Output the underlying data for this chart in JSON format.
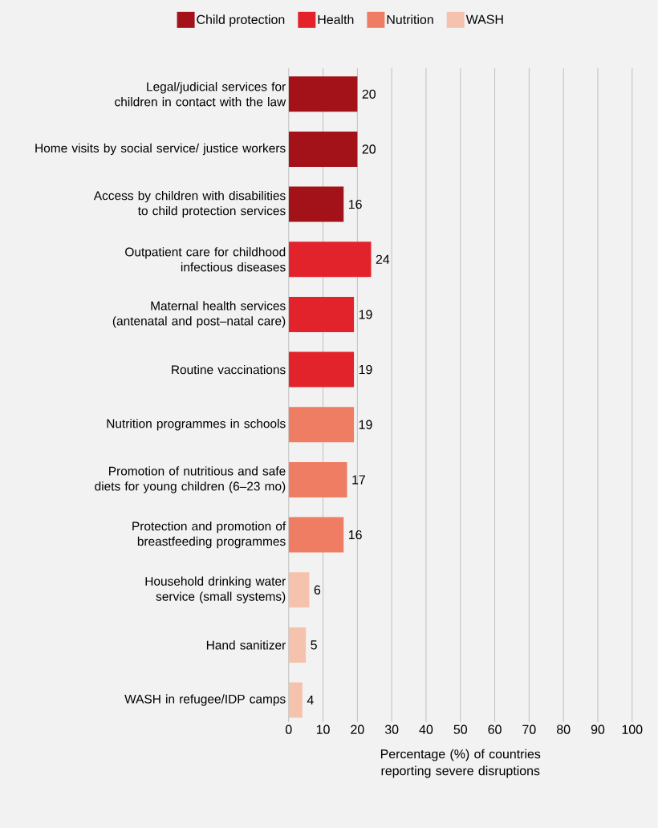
{
  "chart_data": {
    "type": "bar",
    "orientation": "horizontal",
    "xlabel": "Percentage (%) of countries reporting severe disruptions",
    "categories": [
      "Legal/judicial services for children in contact with the law",
      "Home visits by social service/ justice workers",
      "Access by children with disabilities to child protection services",
      "Outpatient care for childhood infectious diseases",
      "Maternal health services (antenatal and post–natal care)",
      "Routine vaccinations",
      "Nutrition programmes in schools",
      "Promotion of nutritious and safe diets for young children (6–23 mo)",
      "Protection and promotion of breastfeeding programmes",
      "Household drinking water service (small systems)",
      "Hand sanitizer",
      "WASH in refugee/IDP camps"
    ],
    "series": [
      {
        "name": "Child protection",
        "color": "#a31218",
        "values": [
          20,
          20,
          16,
          null,
          null,
          null,
          null,
          null,
          null,
          null,
          null,
          null
        ]
      },
      {
        "name": "Health",
        "color": "#e3232b",
        "values": [
          null,
          null,
          null,
          24,
          19,
          19,
          null,
          null,
          null,
          null,
          null,
          null
        ]
      },
      {
        "name": "Nutrition",
        "color": "#ee7d63",
        "values": [
          null,
          null,
          null,
          null,
          null,
          null,
          19,
          17,
          16,
          null,
          null,
          null
        ]
      },
      {
        "name": "WASH",
        "color": "#f5c3ad",
        "values": [
          null,
          null,
          null,
          null,
          null,
          null,
          null,
          null,
          null,
          6,
          5,
          4
        ]
      }
    ],
    "xlim": [
      0,
      100
    ],
    "xticks": [
      0,
      10,
      20,
      30,
      40,
      50,
      60,
      70,
      80,
      90,
      100
    ],
    "grid": "x",
    "legend": "top",
    "data_labels": true
  }
}
